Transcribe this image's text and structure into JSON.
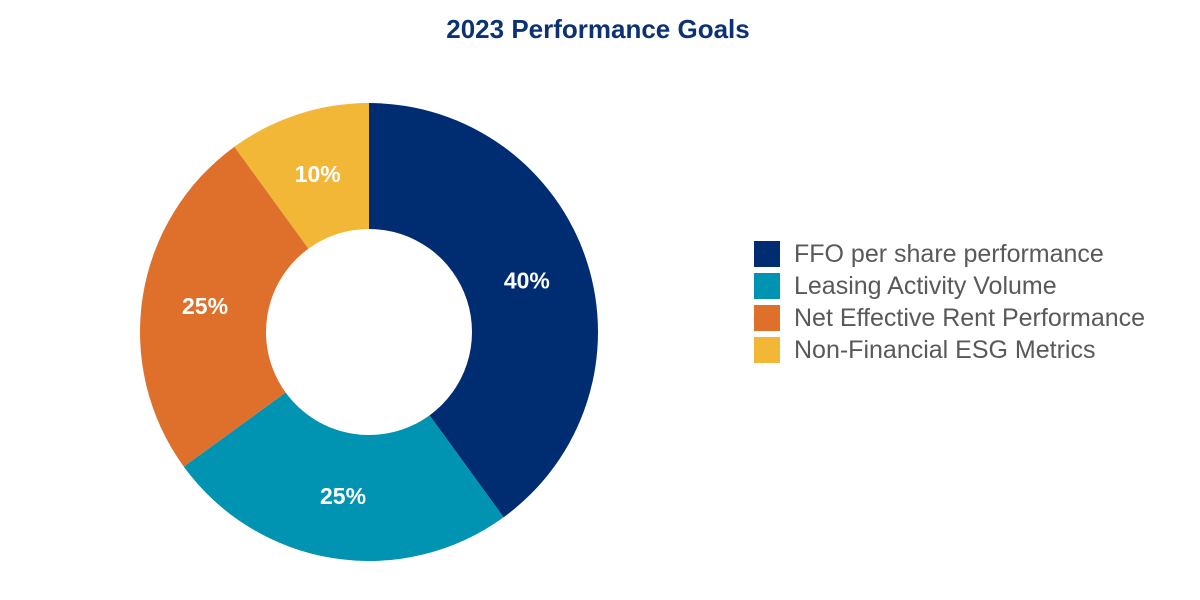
{
  "chart_data": {
    "type": "pie",
    "title": "2023 Performance Goals",
    "slices": [
      {
        "name": "FFO per share performance",
        "value": 40,
        "label": "40%",
        "color": "#002d72"
      },
      {
        "name": "Leasing Activity Volume",
        "value": 25,
        "label": "25%",
        "color": "#0093b2"
      },
      {
        "name": "Net Effective Rent Performance",
        "value": 25,
        "label": "25%",
        "color": "#df702c"
      },
      {
        "name": "Non-Financial ESG Metrics",
        "value": 10,
        "label": "10%",
        "color": "#f2b736"
      }
    ],
    "legend_position": "right",
    "start_angle_deg": 0,
    "direction": "clockwise"
  }
}
